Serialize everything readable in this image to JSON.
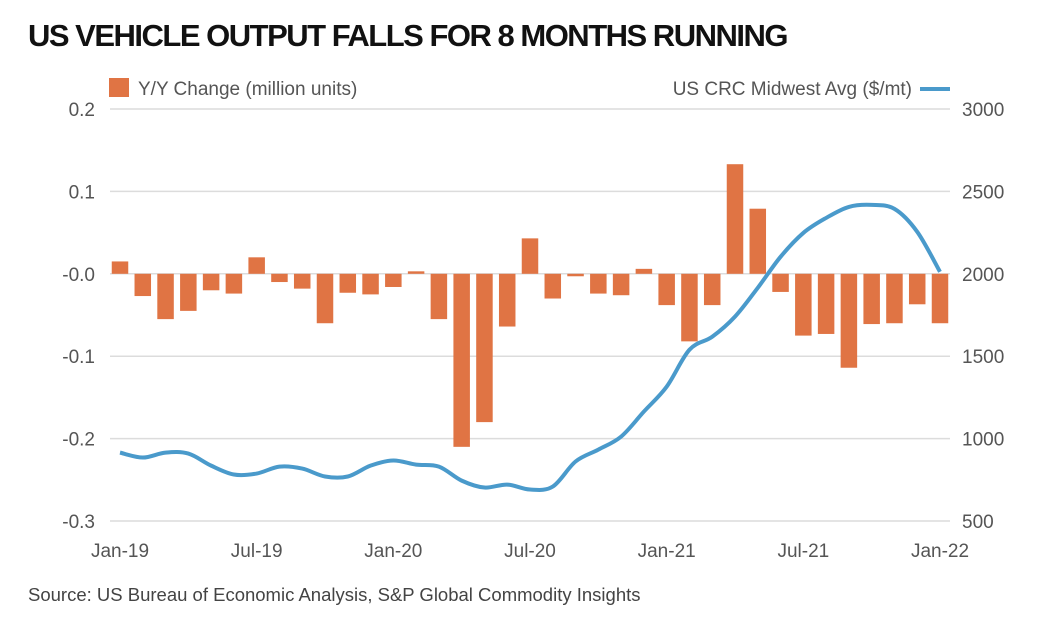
{
  "title": "US VEHICLE OUTPUT FALLS FOR 8 MONTHS RUNNING",
  "source": "Source: US Bureau of Economic Analysis, S&P Global Commodity Insights",
  "chart_data": {
    "type": "bar+line",
    "title": "US VEHICLE OUTPUT FALLS FOR 8 MONTHS RUNNING",
    "categories": [
      "Jan-19",
      "Feb-19",
      "Mar-19",
      "Apr-19",
      "May-19",
      "Jun-19",
      "Jul-19",
      "Aug-19",
      "Sep-19",
      "Oct-19",
      "Nov-19",
      "Dec-19",
      "Jan-20",
      "Feb-20",
      "Mar-20",
      "Apr-20",
      "May-20",
      "Jun-20",
      "Jul-20",
      "Aug-20",
      "Sep-20",
      "Oct-20",
      "Nov-20",
      "Dec-20",
      "Jan-21",
      "Feb-21",
      "Mar-21",
      "Apr-21",
      "May-21",
      "Jun-21",
      "Jul-21",
      "Aug-21",
      "Sep-21",
      "Oct-21",
      "Nov-21",
      "Dec-21",
      "Jan-22"
    ],
    "x_tick_labels": [
      "Jan-19",
      "Jul-19",
      "Jan-20",
      "Jul-20",
      "Jan-21",
      "Jul-21",
      "Jan-22"
    ],
    "left_axis": {
      "ylim": [
        -0.3,
        0.2
      ],
      "tick_labels": [
        "0.2",
        "0.1",
        "-0.0",
        "-0.1",
        "-0.2",
        "-0.3"
      ],
      "ticks": [
        0.2,
        0.1,
        0,
        -0.1,
        -0.2,
        -0.3
      ]
    },
    "right_axis": {
      "ylim": [
        500,
        3000
      ],
      "tick_labels": [
        "3000",
        "2500",
        "2000",
        "1500",
        "1000",
        "500"
      ],
      "ticks": [
        3000,
        2500,
        2000,
        1500,
        1000,
        500
      ]
    },
    "grid": true,
    "legend_placement": "top",
    "series": [
      {
        "name": "Y/Y Change (million units)",
        "type": "bar",
        "axis": "left",
        "color": "#e07444",
        "values": [
          0.015,
          -0.027,
          -0.055,
          -0.045,
          -0.02,
          -0.024,
          0.02,
          -0.01,
          -0.018,
          -0.06,
          -0.023,
          -0.025,
          -0.016,
          0.003,
          -0.055,
          -0.21,
          -0.18,
          -0.064,
          0.043,
          -0.03,
          -0.003,
          -0.024,
          -0.026,
          0.006,
          -0.038,
          -0.082,
          -0.038,
          0.133,
          0.079,
          -0.022,
          -0.075,
          -0.073,
          -0.114,
          -0.061,
          -0.06,
          -0.037,
          -0.06
        ]
      },
      {
        "name": "US CRC Midwest Avg ($/mt)",
        "type": "line",
        "axis": "right",
        "color": "#4a9acb",
        "values": [
          915,
          885,
          915,
          909,
          836,
          782,
          788,
          830,
          818,
          770,
          770,
          836,
          867,
          842,
          830,
          745,
          703,
          721,
          691,
          709,
          861,
          933,
          1012,
          1164,
          1315,
          1539,
          1618,
          1740,
          1915,
          2103,
          2248,
          2339,
          2406,
          2418,
          2394,
          2255,
          2012
        ]
      }
    ]
  }
}
